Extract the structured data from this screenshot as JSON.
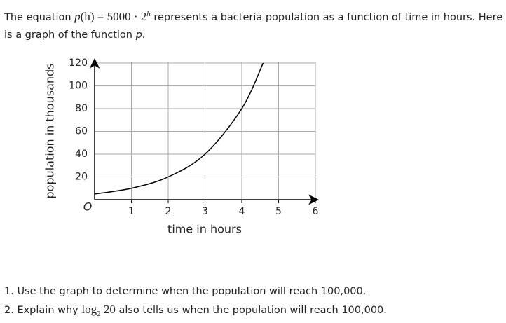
{
  "intro": {
    "before": "The equation ",
    "fn": "p",
    "args": "(h) = 5000 · 2",
    "exp": "h",
    "after": " represents a bacteria population as a function of time in hours. Here is a graph of the function ",
    "fn2": "p",
    "end": "."
  },
  "chart_data": {
    "type": "line",
    "x_label": "time in hours",
    "y_label": "population in thousands",
    "origin_label": "O",
    "x": [
      0,
      1,
      2,
      3,
      4,
      4.58
    ],
    "values": [
      5,
      10,
      20,
      40,
      80,
      120
    ],
    "color": "#000000",
    "xlim": [
      0,
      6
    ],
    "ylim": [
      0,
      120
    ],
    "xticks": [
      1,
      2,
      3,
      4,
      5,
      6
    ],
    "yticks": [
      20,
      40,
      60,
      80,
      100,
      120
    ],
    "grid": true
  },
  "questions": {
    "q1": "1. Use the graph to determine when the population will reach 100,000.",
    "q2": {
      "prefix": "2. Explain why ",
      "log": "log",
      "base": "2",
      "arg": " 20",
      "suffix": " also tells us when the population will reach 100,000."
    }
  }
}
